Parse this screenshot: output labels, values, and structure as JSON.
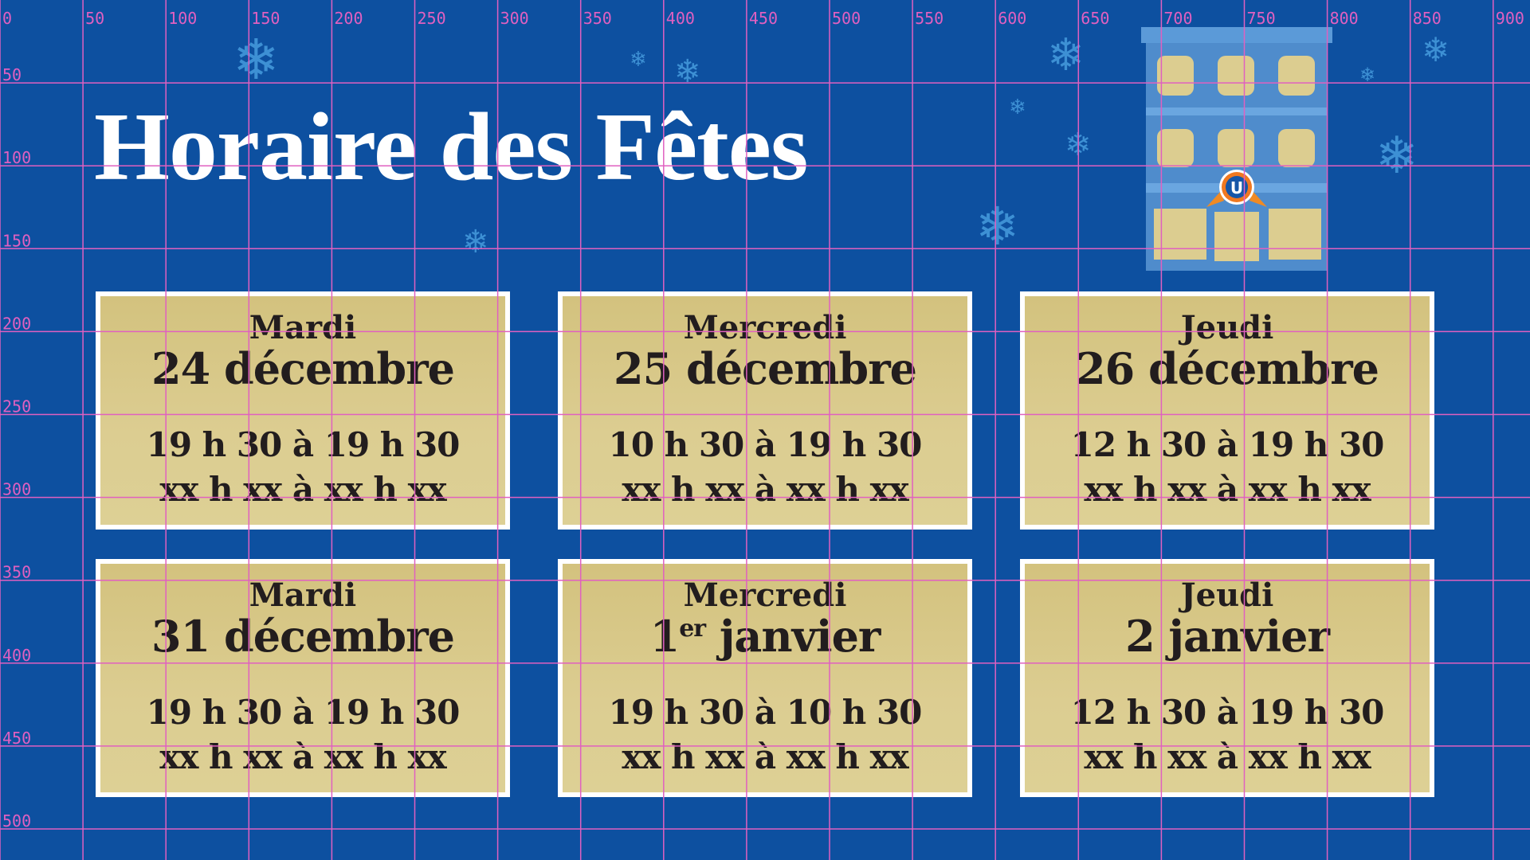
{
  "title": "Horaire des Fêtes",
  "cards": [
    {
      "day": "Mardi",
      "date": "24 décembre",
      "date_sup": "",
      "hours": "19 h 30 à 19 h 30",
      "placeholder": "xx h xx à xx h xx"
    },
    {
      "day": "Mercredi",
      "date": "25 décembre",
      "date_sup": "",
      "hours": "10 h 30 à 19 h 30",
      "placeholder": "xx h xx à xx h xx"
    },
    {
      "day": "Jeudi",
      "date": "26 décembre",
      "date_sup": "",
      "hours": "12 h 30 à 19 h 30",
      "placeholder": "xx h xx à xx h xx"
    },
    {
      "day": "Mardi",
      "date": "31 décembre",
      "date_sup": "",
      "hours": "19 h 30 à 19 h 30",
      "placeholder": "xx h xx à xx h xx"
    },
    {
      "day": "Mercredi",
      "date_num": "1",
      "date_sup": "er",
      "date_rest": " janvier",
      "hours": "19 h 30 à 10 h 30",
      "placeholder": "xx h xx à xx h xx"
    },
    {
      "day": "Jeudi",
      "date": "2 janvier",
      "date_sup": "",
      "hours": "12 h 30 à 19 h 30",
      "placeholder": "xx h xx à xx h xx"
    }
  ],
  "logo_letter": "U",
  "grid": {
    "x_labels": [
      "0",
      "50",
      "100",
      "150",
      "200",
      "250",
      "300",
      "350",
      "400",
      "450",
      "500",
      "550",
      "600",
      "650",
      "700",
      "750",
      "800",
      "850",
      "900"
    ],
    "y_labels": [
      "50",
      "100",
      "150",
      "200",
      "250",
      "300",
      "350",
      "400",
      "450",
      "500"
    ],
    "color": "#e060c0"
  },
  "colors": {
    "background": "#0d50a0",
    "card": "#d8c888",
    "text": "#221d1e",
    "snowflake": "#3d90d4"
  }
}
